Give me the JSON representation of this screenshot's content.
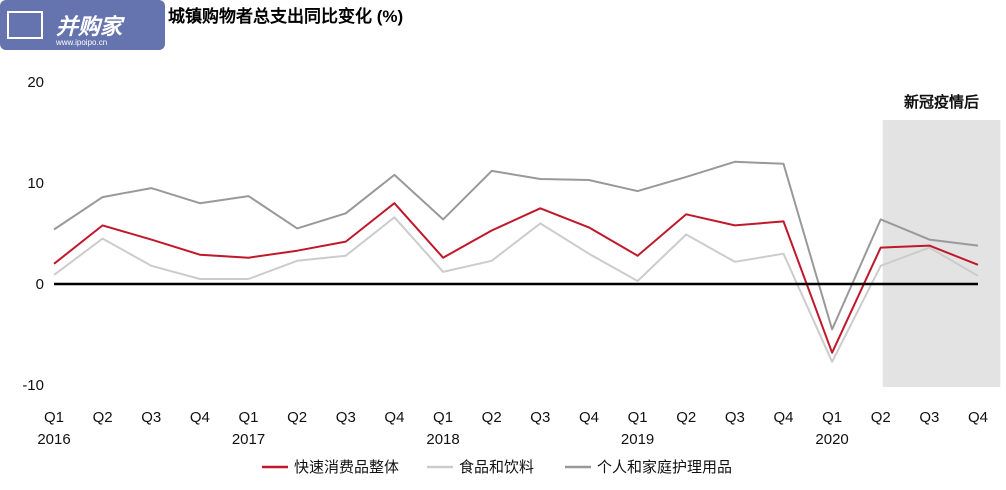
{
  "watermark": {
    "brand": "并购家",
    "url": "www.ipoipo.cn"
  },
  "chart_data": {
    "type": "line",
    "title": "城镇购物者总支出同比变化 (%)",
    "categories": [
      "Q1",
      "Q2",
      "Q3",
      "Q4",
      "Q1",
      "Q2",
      "Q3",
      "Q4",
      "Q1",
      "Q2",
      "Q3",
      "Q4",
      "Q1",
      "Q2",
      "Q3",
      "Q4",
      "Q1",
      "Q2",
      "Q3",
      "Q4"
    ],
    "years": [
      {
        "label": "2016",
        "index": 0
      },
      {
        "label": "2017",
        "index": 4
      },
      {
        "label": "2018",
        "index": 8
      },
      {
        "label": "2019",
        "index": 12
      },
      {
        "label": "2020",
        "index": 16
      }
    ],
    "ylim": [
      -10,
      20
    ],
    "yticks": [
      20,
      10,
      0,
      -10
    ],
    "shaded_region": {
      "label": "新冠疫情后",
      "from_index": 17,
      "to_index": 19
    },
    "legend_position": "bottom",
    "series": [
      {
        "name": "快速消费品整体",
        "color": "#c0182a",
        "values": [
          2.0,
          5.8,
          4.4,
          2.9,
          2.6,
          3.3,
          4.2,
          8.0,
          2.6,
          5.3,
          7.5,
          5.6,
          2.8,
          6.9,
          5.8,
          6.2,
          -6.8,
          3.6,
          3.8,
          1.9
        ]
      },
      {
        "name": "食品和饮料",
        "color": "#cccccc",
        "values": [
          0.9,
          4.5,
          1.8,
          0.5,
          0.5,
          2.3,
          2.8,
          6.6,
          1.2,
          2.3,
          6.0,
          3.0,
          0.3,
          4.9,
          2.2,
          3.0,
          -7.7,
          1.8,
          3.6,
          0.8
        ]
      },
      {
        "name": "个人和家庭护理用品",
        "color": "#999999",
        "values": [
          5.4,
          8.6,
          9.5,
          8.0,
          8.7,
          5.5,
          7.0,
          10.8,
          6.4,
          11.2,
          10.4,
          10.3,
          9.2,
          10.6,
          12.1,
          11.9,
          -4.5,
          6.4,
          4.4,
          3.8
        ]
      }
    ]
  }
}
